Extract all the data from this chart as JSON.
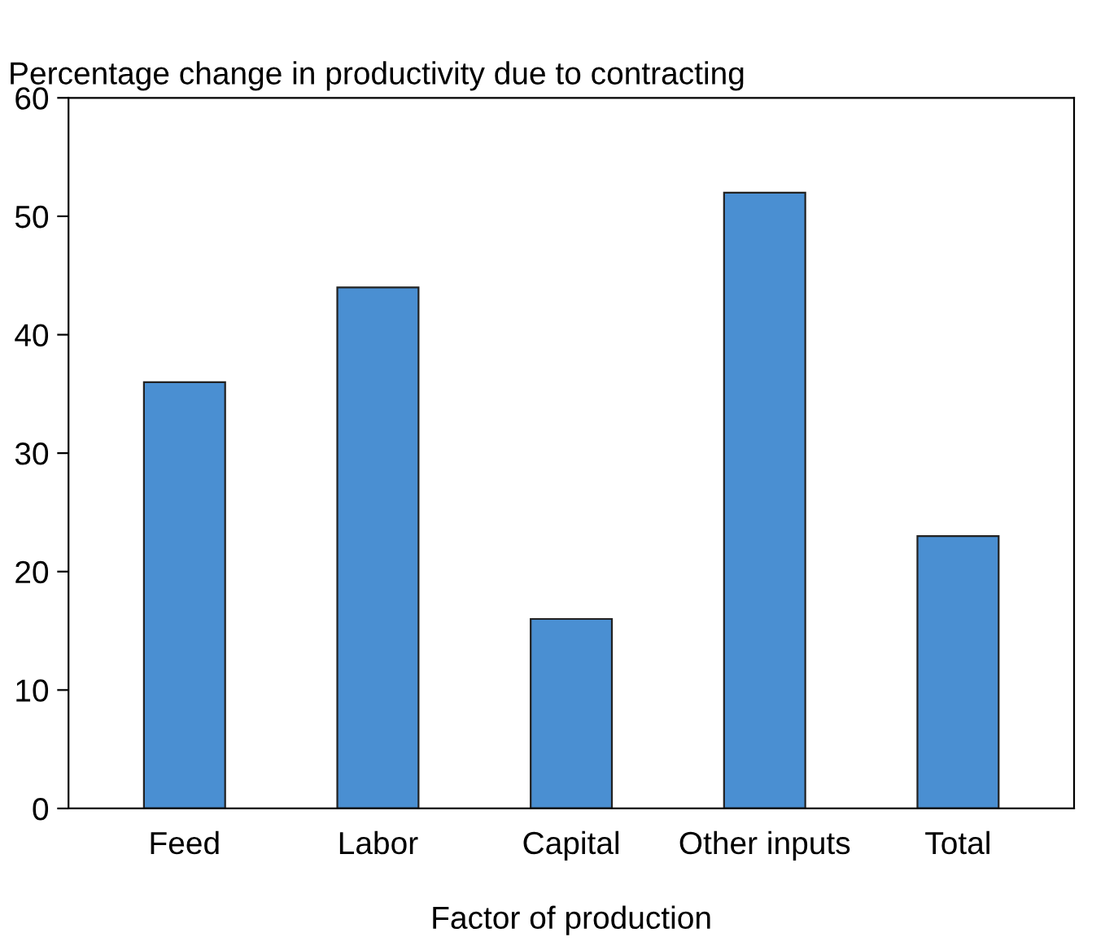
{
  "chart_data": {
    "type": "bar",
    "ylabel": "Percentage change in productivity due to contracting",
    "xlabel": "Factor of production",
    "categories": [
      "Feed",
      "Labor",
      "Capital",
      "Other inputs",
      "Total"
    ],
    "values": [
      36,
      44,
      16,
      52,
      23
    ],
    "color": "#4a8fd2",
    "ylim": [
      0,
      60
    ],
    "yticks": [
      0,
      10,
      20,
      30,
      40,
      50,
      60
    ],
    "grid": false,
    "legend": false
  }
}
